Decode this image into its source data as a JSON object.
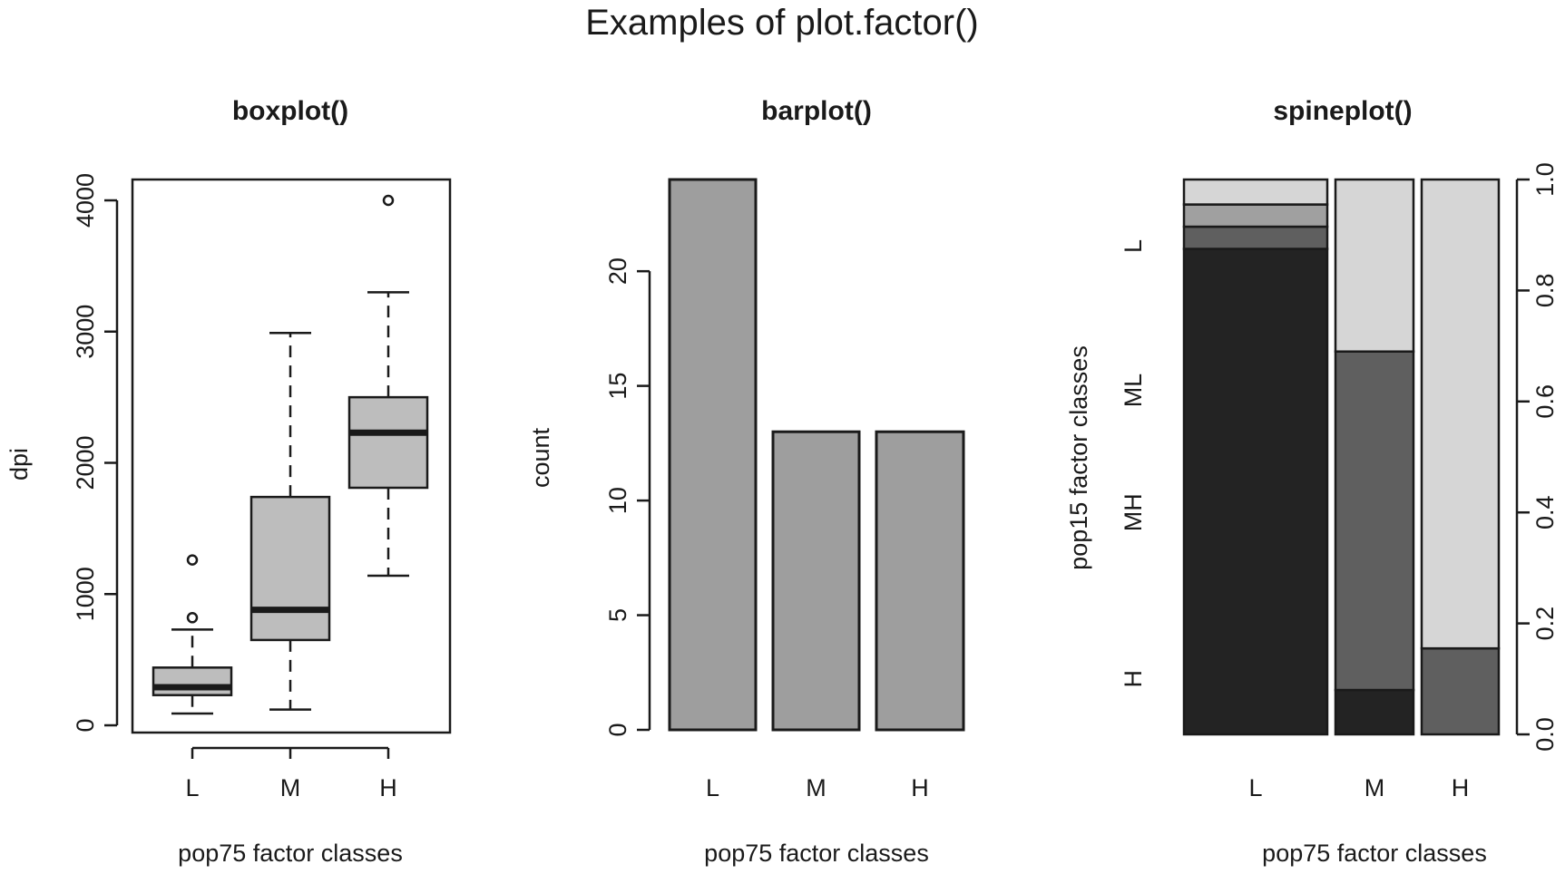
{
  "figure_title": "Examples of plot.factor()",
  "chart_data": [
    {
      "type": "box",
      "title": "boxplot()",
      "xlabel": "pop75 factor classes",
      "ylabel": "dpi",
      "categories": [
        "L",
        "M",
        "H"
      ],
      "ylim": [
        0,
        4000
      ],
      "yticks": [
        0,
        1000,
        2000,
        3000,
        4000
      ],
      "boxes": [
        {
          "category": "L",
          "whisker_low": 90,
          "q1": 230,
          "median": 290,
          "q3": 440,
          "whisker_high": 730,
          "outliers": [
            820,
            1260
          ]
        },
        {
          "category": "M",
          "whisker_low": 120,
          "q1": 650,
          "median": 880,
          "q3": 1740,
          "whisker_high": 2990,
          "outliers": []
        },
        {
          "category": "H",
          "whisker_low": 1140,
          "q1": 1810,
          "median": 2230,
          "q3": 2500,
          "whisker_high": 3300,
          "outliers": [
            4000
          ]
        }
      ],
      "fill_color": "#bdbdbd",
      "grid": false
    },
    {
      "type": "bar",
      "title": "barplot()",
      "xlabel": "pop75 factor classes",
      "ylabel": "count",
      "categories": [
        "L",
        "M",
        "H"
      ],
      "values": [
        24,
        13,
        13
      ],
      "ylim": [
        0,
        24
      ],
      "yticks": [
        0,
        5,
        10,
        15,
        20
      ],
      "fill_color": "#9e9e9e",
      "grid": false
    },
    {
      "type": "spineplot",
      "title": "spineplot()",
      "xlabel": "pop75 factor classes",
      "ylabel": "pop15 factor classes",
      "x_categories": [
        "L",
        "M",
        "H"
      ],
      "x_widths": [
        24,
        13,
        13
      ],
      "y_categories": [
        "H",
        "MH",
        "ML",
        "L"
      ],
      "proportions": [
        [
          0.875,
          0.04,
          0.04,
          0.045
        ],
        [
          0.08,
          0.61,
          0.0,
          0.31
        ],
        [
          0.0,
          0.155,
          0.0,
          0.845
        ]
      ],
      "ylim": [
        0,
        1
      ],
      "right_ticks": [
        "0.0",
        "0.2",
        "0.4",
        "0.6",
        "0.8",
        "1.0"
      ],
      "segment_colors": [
        "#232323",
        "#5f5f5f",
        "#a0a0a0",
        "#d6d6d6"
      ],
      "grid": false
    }
  ]
}
